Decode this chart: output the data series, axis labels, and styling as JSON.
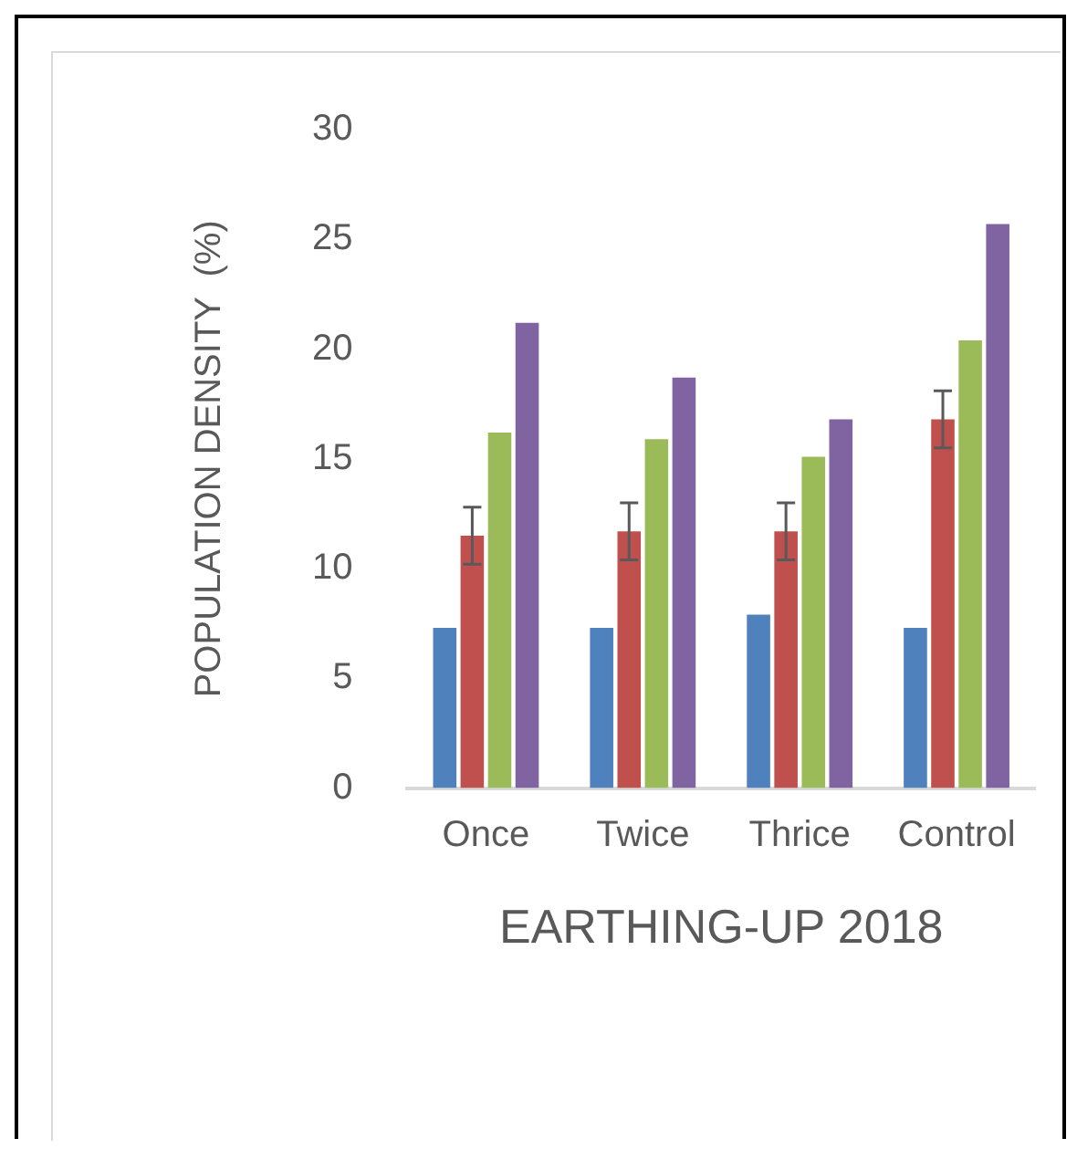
{
  "chart_data": {
    "type": "bar",
    "xlabel": "EARTHING-UP 2018",
    "ylabel": "POPULATION DENSITY  (%)",
    "categories": [
      "Once",
      "Twice",
      "Thrice",
      "Control"
    ],
    "series": [
      {
        "color": "#4f81bd",
        "values": [
          7.3,
          7.3,
          7.9,
          7.3
        ]
      },
      {
        "color": "#c0504d",
        "values": [
          11.5,
          11.7,
          11.7,
          16.8
        ],
        "errors": [
          1.3,
          1.3,
          1.3,
          1.3
        ]
      },
      {
        "color": "#9bbb59",
        "values": [
          16.2,
          15.9,
          15.1,
          20.4
        ]
      },
      {
        "color": "#8064a2",
        "values": [
          21.2,
          18.7,
          16.8,
          25.7
        ]
      }
    ],
    "ylim": [
      0,
      30
    ],
    "yticks": [
      0,
      5,
      10,
      15,
      20,
      25,
      30
    ],
    "grid": false,
    "legend": false
  }
}
